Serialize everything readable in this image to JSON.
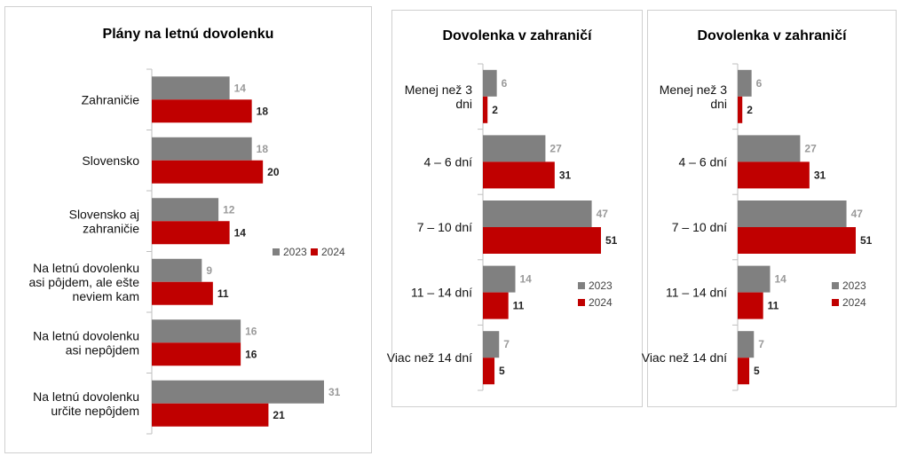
{
  "colors": {
    "2023": "#808080",
    "2024": "#C00000"
  },
  "chart_data": [
    {
      "type": "bar",
      "orientation": "horizontal",
      "title": "Plány na letnú dovolenku",
      "categories": [
        "Zahraničie",
        "Slovensko",
        "Slovensko aj zahraničie",
        "Na letnú dovolenku asi pôjdem, ale ešte neviem kam",
        "Na letnú dovolenku asi nepôjdem",
        "Na letnú dovolenku určite nepôjdem"
      ],
      "category_lines": [
        [
          "Zahraničie"
        ],
        [
          "Slovensko"
        ],
        [
          "Slovensko aj",
          "zahraničie"
        ],
        [
          "Na letnú dovolenku",
          "asi pôjdem, ale ešte",
          "neviem kam"
        ],
        [
          "Na letnú dovolenku",
          "asi nepôjdem"
        ],
        [
          "Na letnú dovolenku",
          "určite nepôjdem"
        ]
      ],
      "series": [
        {
          "name": "2023",
          "values": [
            14,
            18,
            12,
            9,
            16,
            31
          ]
        },
        {
          "name": "2024",
          "values": [
            18,
            20,
            14,
            11,
            16,
            21
          ]
        }
      ],
      "xlim": [
        0,
        31
      ],
      "legend": "right-middle"
    },
    {
      "type": "bar",
      "orientation": "horizontal",
      "title": "Dovolenka v zahraničí",
      "categories": [
        "Menej než 3 dni",
        "4 – 6 dní",
        "7 – 10 dní",
        "11 – 14 dní",
        "Viac než 14 dní"
      ],
      "category_lines": [
        [
          "Menej než 3",
          "dni"
        ],
        [
          "4 – 6 dní"
        ],
        [
          "7 – 10 dní"
        ],
        [
          "11 – 14 dní"
        ],
        [
          "Viac než 14 dní"
        ]
      ],
      "series": [
        {
          "name": "2023",
          "values": [
            6,
            27,
            47,
            14,
            7
          ]
        },
        {
          "name": "2024",
          "values": [
            2,
            31,
            51,
            11,
            5
          ]
        }
      ],
      "xlim": [
        0,
        51
      ],
      "legend": "right-bottom"
    },
    {
      "type": "bar",
      "orientation": "horizontal",
      "title": "Dovolenka v zahraničí",
      "categories": [
        "Menej než 3 dni",
        "4 – 6 dní",
        "7 – 10 dní",
        "11 – 14 dní",
        "Viac než 14 dní"
      ],
      "category_lines": [
        [
          "Menej než 3",
          "dni"
        ],
        [
          "4 – 6 dní"
        ],
        [
          "7 – 10 dní"
        ],
        [
          "11 – 14 dní"
        ],
        [
          "Viac než 14 dní"
        ]
      ],
      "series": [
        {
          "name": "2023",
          "values": [
            6,
            27,
            47,
            14,
            7
          ]
        },
        {
          "name": "2024",
          "values": [
            2,
            31,
            51,
            11,
            5
          ]
        }
      ],
      "xlim": [
        0,
        51
      ],
      "legend": "right-bottom"
    }
  ]
}
